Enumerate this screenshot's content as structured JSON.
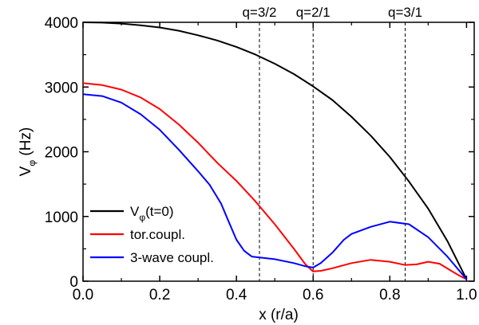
{
  "chart_data": {
    "type": "line",
    "xlabel": "x (r/a)",
    "ylabel": {
      "main": "V",
      "sub": "φ",
      "rest": " (Hz)"
    },
    "xlim": [
      0.0,
      1.02
    ],
    "ylim": [
      0,
      4000
    ],
    "xticks": [
      0.0,
      0.2,
      0.4,
      0.6,
      0.8,
      1.0
    ],
    "xtick_labels": [
      "0.0",
      "0.2",
      "0.4",
      "0.6",
      "0.8",
      "1.0"
    ],
    "yticks": [
      0,
      1000,
      2000,
      3000,
      4000
    ],
    "ytick_labels": [
      "0",
      "1000",
      "2000",
      "3000",
      "4000"
    ],
    "grid": false,
    "legend_position": "bottom-left",
    "annotations": [
      {
        "x": 0.46,
        "text": "q=3/2"
      },
      {
        "x": 0.6,
        "text": "q=2/1"
      },
      {
        "x": 0.84,
        "text": "q=3/1"
      }
    ],
    "series": [
      {
        "name": "V(t=0)",
        "label": {
          "main": "V",
          "sub": "φ",
          "rest": "(t=0)"
        },
        "color": "#000000",
        "x": [
          0.0,
          0.05,
          0.1,
          0.15,
          0.2,
          0.25,
          0.3,
          0.35,
          0.4,
          0.45,
          0.5,
          0.55,
          0.6,
          0.65,
          0.7,
          0.75,
          0.8,
          0.85,
          0.9,
          0.95,
          1.0
        ],
        "y": [
          4000,
          3995,
          3980,
          3955,
          3920,
          3870,
          3800,
          3720,
          3620,
          3500,
          3360,
          3200,
          3010,
          2800,
          2540,
          2250,
          1920,
          1540,
          1120,
          620,
          30
        ]
      },
      {
        "name": "tor.coupl.",
        "label": {
          "main": "tor.coupl.",
          "sub": "",
          "rest": ""
        },
        "color": "#ff0000",
        "x": [
          0.0,
          0.05,
          0.1,
          0.15,
          0.2,
          0.25,
          0.3,
          0.35,
          0.4,
          0.45,
          0.5,
          0.55,
          0.58,
          0.6,
          0.62,
          0.65,
          0.7,
          0.75,
          0.8,
          0.84,
          0.87,
          0.9,
          0.93,
          0.96,
          0.98,
          1.0
        ],
        "y": [
          3060,
          3030,
          2960,
          2840,
          2660,
          2420,
          2140,
          1830,
          1550,
          1230,
          880,
          500,
          260,
          150,
          160,
          200,
          280,
          330,
          300,
          250,
          260,
          300,
          270,
          160,
          90,
          30
        ]
      },
      {
        "name": "3-wave coupl.",
        "label": {
          "main": "3-wave coupl.",
          "sub": "",
          "rest": ""
        },
        "color": "#0000ff",
        "x": [
          0.0,
          0.05,
          0.1,
          0.15,
          0.2,
          0.25,
          0.3,
          0.33,
          0.36,
          0.38,
          0.4,
          0.42,
          0.44,
          0.47,
          0.5,
          0.55,
          0.58,
          0.6,
          0.62,
          0.65,
          0.68,
          0.7,
          0.75,
          0.8,
          0.85,
          0.9,
          0.95,
          1.0
        ],
        "y": [
          2890,
          2860,
          2760,
          2580,
          2340,
          2030,
          1700,
          1490,
          1200,
          920,
          640,
          470,
          380,
          360,
          340,
          280,
          230,
          210,
          280,
          440,
          640,
          730,
          840,
          920,
          880,
          680,
          380,
          30
        ]
      }
    ]
  }
}
